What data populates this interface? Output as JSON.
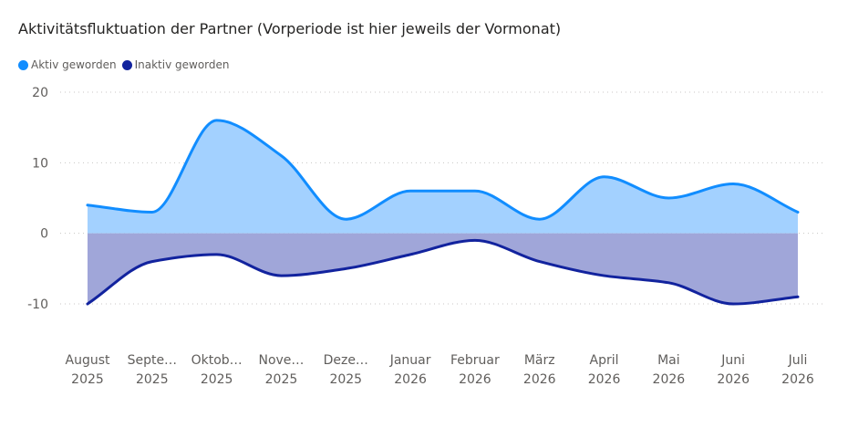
{
  "chart_data": {
    "type": "area",
    "title": "Aktivitätsfluktuation der Partner (Vorperiode ist hier jeweils der Vormonat)",
    "categories": [
      [
        "August",
        "2025"
      ],
      [
        "Septe…",
        "2025"
      ],
      [
        "Oktob…",
        "2025"
      ],
      [
        "Nove…",
        "2025"
      ],
      [
        "Deze…",
        "2025"
      ],
      [
        "Januar",
        "2026"
      ],
      [
        "Februar",
        "2026"
      ],
      [
        "März",
        "2026"
      ],
      [
        "April",
        "2026"
      ],
      [
        "Mai",
        "2026"
      ],
      [
        "Juni",
        "2026"
      ],
      [
        "Juli",
        "2026"
      ]
    ],
    "series": [
      {
        "name": "Aktiv geworden",
        "color": "#118dff",
        "fill": "#a3d1ff",
        "values": [
          4,
          3,
          16,
          11,
          2,
          6,
          6,
          2,
          8,
          5,
          7,
          3
        ]
      },
      {
        "name": "Inaktiv geworden",
        "color": "#12239e",
        "fill": "#a0a6d9",
        "values": [
          -10,
          -4,
          -3,
          -6,
          -5,
          -3,
          -1,
          -4,
          -6,
          -7,
          -10,
          -9
        ]
      }
    ],
    "yticks": [
      20,
      10,
      0,
      -10
    ],
    "ylim": [
      -10,
      20
    ],
    "grid": true,
    "legend_position": "top-left"
  }
}
